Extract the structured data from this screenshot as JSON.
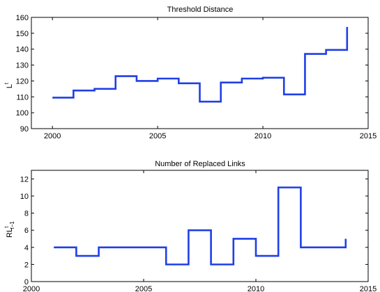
{
  "chart_data": [
    {
      "type": "line",
      "step": "post",
      "title": "Threshold Distance",
      "xlabel": "",
      "ylabel": {
        "base": "L",
        "sup": "t",
        "sub": ""
      },
      "xlim": [
        1999,
        2015
      ],
      "ylim": [
        90,
        160
      ],
      "xticks": [
        2000,
        2005,
        2010,
        2015
      ],
      "yticks": [
        90,
        100,
        110,
        120,
        130,
        140,
        150,
        160
      ],
      "grid": false,
      "line_color": "#1f3fe6",
      "series": [
        {
          "x": [
            2000,
            2001,
            2002,
            2003,
            2004,
            2005,
            2006,
            2007,
            2008,
            2009,
            2010,
            2011,
            2012,
            2013,
            2014
          ],
          "values": [
            109.5,
            114,
            115,
            123,
            120,
            121.5,
            118.5,
            107,
            119,
            121.5,
            122,
            111.5,
            137,
            139.5,
            154
          ]
        }
      ]
    },
    {
      "type": "line",
      "step": "post",
      "title": "Number of Replaced Links",
      "xlabel": "",
      "ylabel": {
        "base": "RL",
        "sup": "t",
        "sub": "t−1"
      },
      "xlim": [
        2000,
        2015
      ],
      "ylim": [
        0,
        13
      ],
      "xticks": [
        2000,
        2005,
        2010,
        2015
      ],
      "yticks": [
        0,
        2,
        4,
        6,
        8,
        10,
        12
      ],
      "grid": false,
      "line_color": "#1f3fe6",
      "series": [
        {
          "x": [
            2001,
            2002,
            2003,
            2004,
            2005,
            2006,
            2007,
            2008,
            2009,
            2010,
            2011,
            2012,
            2013,
            2014
          ],
          "values": [
            4,
            3,
            4,
            4,
            4,
            2,
            6,
            2,
            5,
            3,
            11,
            4,
            4,
            5
          ]
        }
      ]
    }
  ]
}
